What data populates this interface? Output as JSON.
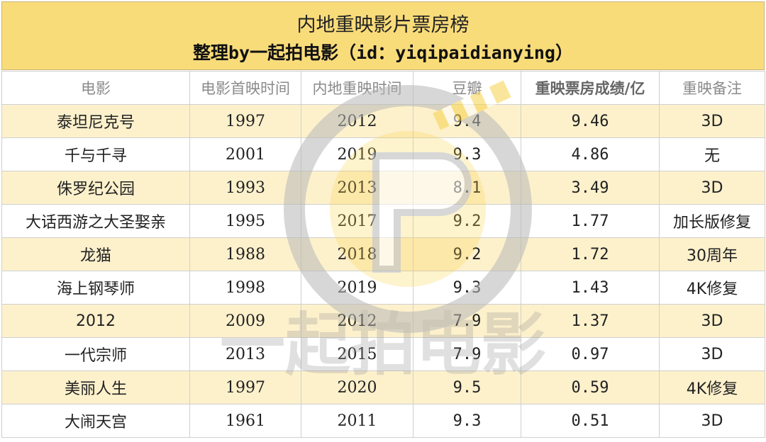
{
  "title": {
    "line1": "内地重映影片票房榜",
    "line2": "整理by一起拍电影（id：yiqipaidianying）"
  },
  "headers": [
    "电影",
    "电影首映时间",
    "内地重映时间",
    "豆瓣",
    "重映票房成绩/亿",
    "重映备注"
  ],
  "rows": [
    [
      "泰坦尼克号",
      "1997",
      "2012",
      "9.4",
      "9.46",
      "3D"
    ],
    [
      "千与千寻",
      "2001",
      "2019",
      "9.3",
      "4.86",
      "无"
    ],
    [
      "侏罗纪公园",
      "1993",
      "2013",
      "8.1",
      "3.49",
      "3D"
    ],
    [
      "大话西游之大圣娶亲",
      "1995",
      "2017",
      "9.2",
      "1.77",
      "加长版修复"
    ],
    [
      "龙猫",
      "1988",
      "2018",
      "9.2",
      "1.72",
      "30周年"
    ],
    [
      "海上钢琴师",
      "1998",
      "2019",
      "9.3",
      "1.43",
      "4K修复"
    ],
    [
      "2012",
      "2009",
      "2012",
      "7.9",
      "1.37",
      "3D"
    ],
    [
      "一代宗师",
      "2013",
      "2015",
      "7.9",
      "0.97",
      "3D"
    ],
    [
      "美丽人生",
      "1997",
      "2020",
      "9.5",
      "0.59",
      "4K修复"
    ],
    [
      "大闹天宫",
      "1961",
      "2011",
      "9.3",
      "0.51",
      "3D"
    ]
  ],
  "watermark": {
    "text": "一起拍电影",
    "colors": {
      "yellow": "#f7d24a",
      "gray": "#9a9a9a"
    }
  },
  "colors": {
    "title_bg": "#f9dc7a",
    "row_shade": "#fdf1cc"
  }
}
